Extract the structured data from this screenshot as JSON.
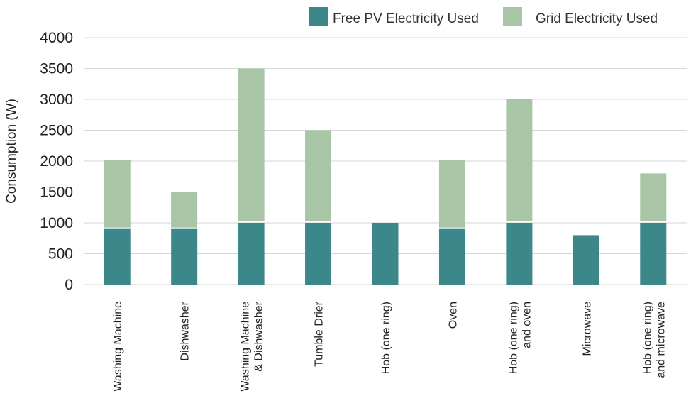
{
  "chart_data": {
    "type": "bar",
    "stacked": true,
    "categories": [
      [
        "Washing Machine"
      ],
      [
        "Dishwasher"
      ],
      [
        "Washing Machine",
        "& Dishwasher"
      ],
      [
        "Tumble Drier"
      ],
      [
        "Hob (one ring)"
      ],
      [
        "Oven"
      ],
      [
        "Hob (one ring)",
        "and oven"
      ],
      [
        "Microwave"
      ],
      [
        "Hob (one ring)",
        "and microwave"
      ]
    ],
    "series": [
      {
        "name": "Free PV Electricity Used",
        "color": "#3b878a",
        "values": [
          900,
          900,
          1000,
          1000,
          1000,
          900,
          1000,
          800,
          1000
        ]
      },
      {
        "name": "Grid Electricity Used",
        "color": "#a8c5a6",
        "values": [
          1120,
          600,
          2500,
          1500,
          0,
          1120,
          2000,
          0,
          800
        ]
      }
    ],
    "ylabel": "Consumption (W)",
    "ylim": [
      0,
      4000
    ],
    "yticks": [
      0,
      500,
      1000,
      1500,
      2000,
      2500,
      3000,
      3500,
      4000
    ],
    "grid": true,
    "legend": "top-right"
  }
}
